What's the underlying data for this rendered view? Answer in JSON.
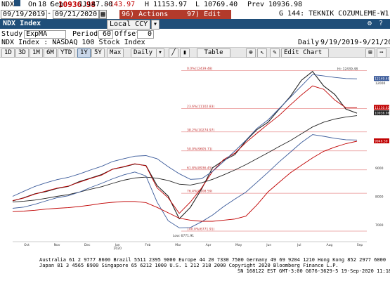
{
  "quote": {
    "ticker": "NDX",
    "last_prefix": "C",
    "last": "10936.98",
    "change": "-143.97",
    "open_prefix": "On",
    "date": "18 Sep",
    "open_value": "11147.80",
    "high_prefix": "H",
    "high": "11153.97",
    "low_prefix": "L",
    "low": "10769.40",
    "prev_label": "Prev",
    "prev": "10936.98"
  },
  "daterow": {
    "start_date": "09/19/2019",
    "end_date": "09/21/2020",
    "menu1_label": "96) Actions",
    "menu2_label": "97) Edit",
    "page_title": "G 144: TEKNIK COZUMLEME-W1"
  },
  "titlebar": {
    "title": "NDX Index",
    "currency": "Local CCY"
  },
  "studyrow": {
    "study_label": "Study",
    "study_value": "ExpMA",
    "period_label": "Period",
    "period_value": "60",
    "offset_label": "Offset",
    "offset_value": "0"
  },
  "inforow": {
    "description": "NDX Index : NASDAQ 100 Stock Index",
    "frequency": "Daily",
    "range": "9/19/2019-9/21/2020"
  },
  "toolbar": {
    "periods": [
      "1D",
      "3D",
      "1M",
      "6M",
      "YTD",
      "1Y",
      "5Y",
      "Max"
    ],
    "active_period": "1Y",
    "frequency_select": "Daily",
    "table_label": "Table",
    "edit_chart_label": "Edit Chart"
  },
  "chart_data": {
    "type": "line",
    "x_ticks": [
      "Oct",
      "Nov",
      "Dec",
      "Jan\n2020",
      "Feb",
      "Mar",
      "Apr",
      "May",
      "Jun",
      "Jul",
      "Aug",
      "Sep"
    ],
    "y_ticks": [
      "7000",
      "8000",
      "9000",
      "10000",
      "11000",
      "12000"
    ],
    "ylim": [
      6500,
      12700
    ],
    "fib_levels": [
      {
        "label": "0.0%(12439.48)",
        "value": 12439.48
      },
      {
        "label": "23.6%(11102.83)",
        "value": 11102.83
      },
      {
        "label": "38.2%(10274.97)",
        "value": 10274.97
      },
      {
        "label": "50.0%(9605.71)",
        "value": 9605.71
      },
      {
        "label": "61.8%(8936.45)",
        "value": 8936.45
      },
      {
        "label": "76.4%(8108.59)",
        "value": 8108.59
      },
      {
        "label": "100.0%(6771.91)",
        "value": 6771.91
      }
    ],
    "high_annotation": "Hi: 12439.48",
    "low_annotation": "Low: 6771.91",
    "price_labels": [
      {
        "label": "12149.40",
        "value": 12149.4,
        "color": "#3a5a9a"
      },
      {
        "label": "11130.62",
        "value": 11130.62,
        "color": "#c00000"
      },
      {
        "label": "10936.98",
        "value": 10936.98,
        "color": "#222222"
      },
      {
        "label": "9946.59",
        "value": 9946.59,
        "color": "#c00000"
      }
    ],
    "series": [
      {
        "color": "#222222",
        "values": [
          7840,
          7950,
          8090,
          8170,
          8280,
          8350,
          8520,
          8640,
          8770,
          8960,
          9040,
          9140,
          9090,
          8380,
          8010,
          7210,
          7610,
          8250,
          9010,
          9270,
          9470,
          9960,
          10360,
          10620,
          11080,
          11530,
          12100,
          12410,
          11900,
          11600,
          11080,
          10937
        ]
      },
      {
        "color": "#c00000",
        "values": [
          7850,
          7940,
          8080,
          8190,
          8290,
          8360,
          8500,
          8630,
          8750,
          8960,
          9050,
          9150,
          9080,
          8300,
          7950,
          7400,
          7800,
          8290,
          8880,
          9300,
          9520,
          9900,
          10230,
          10550,
          10860,
          11230,
          11580,
          11900,
          11780,
          11400,
          11130,
          11131
        ]
      },
      {
        "color": "#222222",
        "values": [
          7800,
          7830,
          7870,
          7930,
          8000,
          8060,
          8150,
          8250,
          8340,
          8460,
          8570,
          8650,
          8680,
          8640,
          8560,
          8430,
          8400,
          8480,
          8600,
          8760,
          8930,
          9120,
          9330,
          9540,
          9760,
          9970,
          10210,
          10450,
          10620,
          10730,
          10800,
          10850
        ]
      },
      {
        "color": "#3a5a9a",
        "values": [
          8000,
          8180,
          8350,
          8480,
          8590,
          8670,
          8790,
          8930,
          9060,
          9230,
          9330,
          9420,
          9440,
          9330,
          9050,
          8800,
          8600,
          8620,
          8880,
          9230,
          9600,
          9980,
          10400,
          10700,
          11100,
          11500,
          11900,
          12300,
          12250,
          12200,
          12160,
          12150
        ]
      },
      {
        "color": "#3a5a9a",
        "values": [
          7580,
          7620,
          7720,
          7840,
          7950,
          8020,
          8150,
          8310,
          8460,
          8620,
          8760,
          8860,
          8720,
          7800,
          7140,
          6890,
          6900,
          7100,
          7340,
          7640,
          7900,
          8150,
          8500,
          8850,
          9220,
          9560,
          9900,
          10180,
          10120,
          10050,
          10000,
          9990
        ]
      },
      {
        "color": "#c00000",
        "values": [
          7460,
          7480,
          7510,
          7550,
          7580,
          7600,
          7640,
          7690,
          7750,
          7790,
          7820,
          7820,
          7780,
          7610,
          7420,
          7230,
          7160,
          7120,
          7120,
          7160,
          7200,
          7300,
          7700,
          8160,
          8500,
          8830,
          9100,
          9360,
          9590,
          9740,
          9860,
          9947
        ]
      }
    ]
  },
  "footer": {
    "line1": "Australia 61 2 9777 8600  Brazil 5511 2395 9000  Europe 44 20 7330 7500  Germany 49 69 9204 1210  Hong Kong 852 2977 6000",
    "line2": "Japan 81 3 4565 8900      Singapore 65 6212 1000      U.S. 1 212 318 2000      Copyright 2020 Bloomberg Finance L.P.",
    "line3": "SN 168122 EST  GMT-3:00 G676-3629-5 19-Sep-2020 11:18:24"
  }
}
